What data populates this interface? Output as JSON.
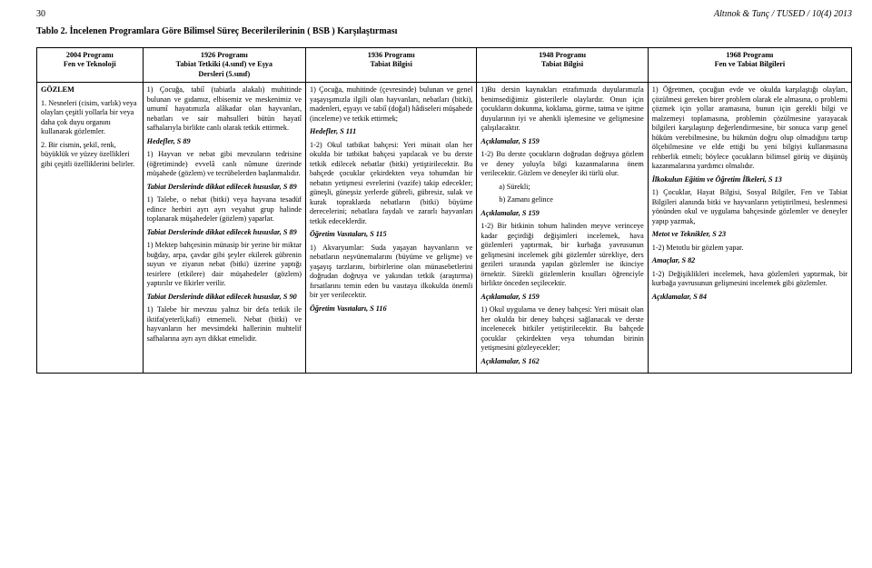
{
  "header": {
    "page_num": "30",
    "running": "Altınok & Tunç / TUSED / 10(4) 2013"
  },
  "title": "Tablo 2. İncelenen Programlara Göre Bilimsel Süreç Becerilerilerinin ( BSB ) Karşılaştırması",
  "columns": {
    "c0": {
      "l1": "2004 Programı",
      "l2": "Fen ve Teknoloji"
    },
    "c1": {
      "l1": "1926 Programı",
      "l2": "Tabiat Tetkiki (4.sınıf) ve Eşya",
      "l3": "Dersleri (5.sınıf)"
    },
    "c2": {
      "l1": "1936 Programı",
      "l2": "Tabiat Bilgisi"
    },
    "c3": {
      "l1": "1948 Programı",
      "l2": "Tabiat Bilgisi"
    },
    "c4": {
      "l1": "1968 Programı",
      "l2": "Fen ve Tabiat Bilgileri"
    }
  },
  "row_label": {
    "head": "GÖZLEM",
    "p1": "1. Nesneleri (cisim, varlık) veya olayları çeşitli yollarla bir veya daha çok duyu organını kullanarak gözlemler.",
    "p2": "2. Bir cismin, şekil, renk, büyüklük ve yüzey özellikleri gibi çeşitli özelliklerini belirler."
  },
  "c1body": {
    "p1": "1) Çocuğa, tabiî (tabiatla alakalı) muhitinde bulunan ve gıdamız, elbisemiz ve meskenimiz ve umumî hayatımızla alâkadar olan hayvanları, nebatları ve sair mahsulleri bütün hayatî safhalarıyla birlikte canlı olarak tetkik ettirmek.",
    "h1": "Hedefler, S 89",
    "p2": "1) Hayvan ve nebat gibi mevzuların tedrisine (öğretiminde) evvelâ canlı nûmune üzerinde müşahede (gözlem) ve tecrübelerden başlanmalıdır.",
    "h2": "Tabiat Derslerinde dikkat edilecek hususlar, S 89",
    "p3": "1) Talebe, o nebat (bitki) veya hayvana tesadüf edince herbiri ayrı ayrı veyahut grup halinde toplanarak müşahedeler (gözlem) yaparlar.",
    "h3": "Tabiat Derslerinde dikkat edilecek hususlar, S 89",
    "p4": "1) Mektep bahçesinin münasip bir yerine bir miktar buğday, arpa, çavdar gibi şeyler ekilerek gübrenin suyun ve ziyanın nebat (bitki) üzerine yaptığı tesirlere (etkilere) dair müşahedeler (gözlem) yaptırılır ve fikirler verilir.",
    "h4": "Tabiat Derslerinde dikkat edilecek hususlar, S 90",
    "p5": "1) Talebe bir mevzuu yalnız bir defa tetkik ile iktifa(yeterli,kafi) etmemeli. Nebat (bitki) ve hayvanların her mevsimdeki hallerinin muhtelif safhalarına ayrı ayrı dikkat etmelidir."
  },
  "c2body": {
    "p1": "1) Çocuğa, muhitinde (çevresinde) bulunan ve genel yaşayışımızla ilgili olan hayvanları, nebatları (bitki), madenleri, eşyayı ve tabiî (doğal) hâdiseleri müşahede (inceleme) ve tetkik ettirmek;",
    "h1": "Hedefler, S 111",
    "p2": "1-2) Okul tatbikat bahçesi: Yeri müsait olan her okulda bir tatbikat bahçesi yapılacak ve bu derste tetkik edilecek nebatlar (bitki) yetiştirilecektir. Bu bahçede çocuklar çekirdekten veya tohumdan bir nebatın yetişmesi evrelerini (vazife) takip edecekler; güneşli, güneşsiz yerlerde gübreli, gübresiz, sulak ve kurak topraklarda nebatların (bitki) büyüme derecelerini; nebatlara faydalı ve zararlı hayvanları tetkik edeceklerdir.",
    "h2": "Öğretim Vasıtaları, S 115",
    "p3": "1) Akvaryumlar: Suda yaşayan hayvanların ve nebatların neşvünemalarını (büyüme ve gelişme) ve yaşayış tarzlarını, birbirlerine olan münasebetlerini doğrudan doğruya ve yakından tetkik (araştırma) fırsatlarını temin eden bu vasıtaya ilkokulda önemli bir yer verilecektir.",
    "h3": "Öğretim Vasıtaları, S 116"
  },
  "c3body": {
    "p1": "1)Bu dersin kaynakları etrafımızda duyularımızla benimsediğimiz gösterilerle olaylardır. Onun için çocukların dokunma, koklama, görme, tatma ve işitme duyularının iyi ve ahenkli işlemesine ve gelişmesine çalışılacaktır.",
    "h1": "Açıklamalar, S 159",
    "p2": "1-2) Bu derste çocukların doğrudan doğruya gözlem ve deney yoluyla bilgi kazanmalarına önem verilecektir. Gözlem ve deneyler iki türlü olur.",
    "li_a": "a)   Sürekli;",
    "li_b": "b)   Zamanı gelince",
    "h2": "Açıklamalar, S 159",
    "p3": "1-2) Bir bitkinin tohum halinden meyve verinceye kadar geçirdiği değişimleri incelemek, hava gözlemleri yaptırmak, bir kurbağa yavrusunun gelişmesini incelemek gibi gözlemler sürekliye, ders gezileri sırasında yapılan gözlemler ise ikinciye örnektir. Sürekli gözlemlerin kısulları öğrenciyle birlikte önceden seçilecektir.",
    "h3": "Açıklamalar, S 159",
    "p4": "1) Okul uygulama ve deney bahçesi: Yeri müsait olan her okulda bir deney bahçesi sağlanacak ve derste incelenecek bitkiler yetiştirilecektir. Bu bahçede çocuklar çekirdekten veya tohumdan birinin yetişmesini gözleyecekler;",
    "h4": "Açıklamalar, S 162"
  },
  "c4body": {
    "p1": "1) Öğretmen, çocuğun evde ve okulda karşılaştığı olayları, çözülmesi gereken birer problem olarak ele almasına, o problemi çözmek için yollar aramasına, bunun için gerekli bilgi ve malzemeyi toplamasına, problemin çözülmesine yarayacak bilgileri karşılaştırıp değerlendirmesine, bir sonuca varıp genel hüküm verebilmesine, bu hükmün doğru olup olmadığını tartıp ölçebilmesine ve elde ettiği bu yeni bilgiyi kullanmasına rehberlik etmeli; böylece çocukların bilimsel görüş ve düşünüş kazanmalarına yardımcı olmalıdır.",
    "h1": "İlkokulun Eğitim ve Öğretim İlkeleri, S 13",
    "p2": "1) Çocuklar, Hayat Bilgisi, Sosyal Bilgiler, Fen ve Tabiat Bilgileri alanında bitki ve hayvanların yetiştirilmesi, beslenmesi yönünden okul ve uygulama bahçesinde gözlemler ve deneyler yapıp yazmak,",
    "h2": "Metot ve Teknikler, S 23",
    "p3": "1-2) Metotlu bir gözlem yapar.",
    "h3": "Amaçlar, S 82",
    "p4": "1-2) Değişiklikleri incelemek, hava gözlemleri yaptırmak, bir kurbağa yavrusunun gelişmesini incelemek gibi gözlemler.",
    "h4": "Açıklamalar, S 84"
  }
}
